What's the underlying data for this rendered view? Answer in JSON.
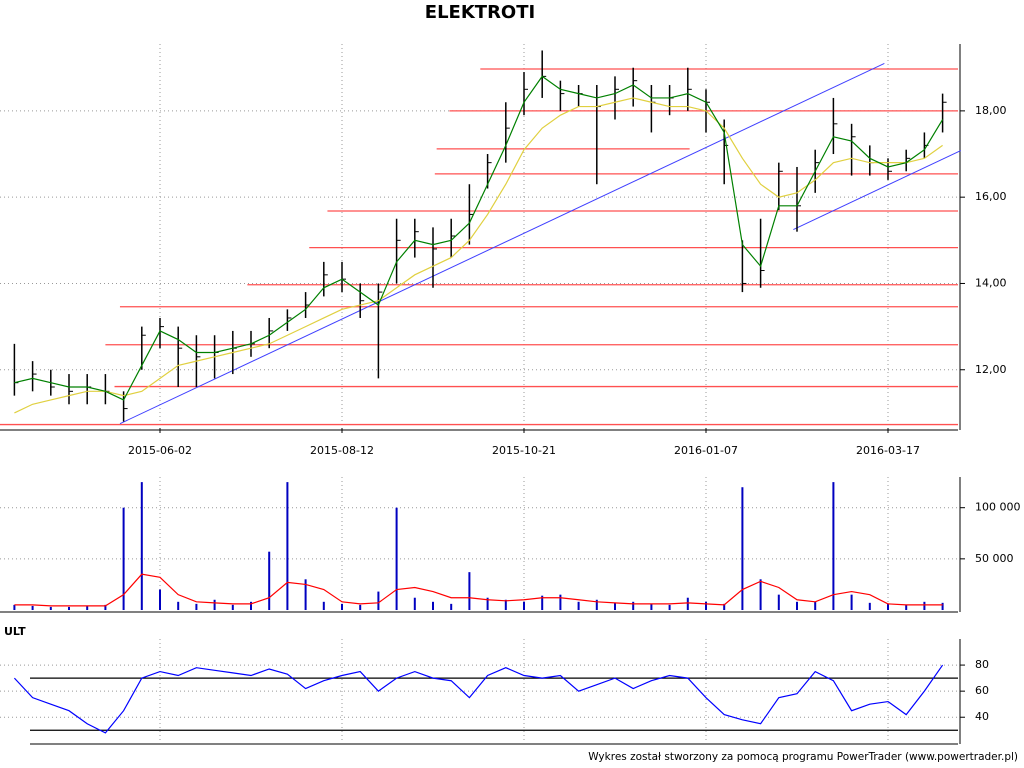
{
  "chart_data": [
    {
      "type": "ohlc",
      "title": "ELEKTROTI",
      "categories": [
        null,
        null,
        null,
        null,
        null,
        null,
        null,
        null,
        "2015-06-02",
        null,
        null,
        null,
        null,
        null,
        null,
        null,
        null,
        null,
        "2015-08-12",
        null,
        null,
        null,
        null,
        null,
        null,
        null,
        null,
        null,
        "2015-10-21",
        null,
        null,
        null,
        null,
        null,
        null,
        null,
        null,
        null,
        "2016-01-07",
        null,
        null,
        null,
        null,
        null,
        null,
        null,
        null,
        null,
        "2016-03-17",
        null,
        null,
        null
      ],
      "high": [
        12.6,
        12.2,
        12.0,
        11.9,
        11.9,
        11.9,
        11.5,
        13.0,
        13.2,
        13.0,
        12.8,
        12.8,
        12.9,
        12.9,
        13.2,
        13.4,
        13.8,
        14.5,
        14.5,
        14.0,
        14.0,
        15.5,
        15.5,
        15.3,
        15.5,
        16.3,
        17.0,
        18.2,
        18.9,
        19.4,
        18.7,
        18.6,
        18.6,
        18.8,
        19.0,
        18.6,
        18.6,
        19.0,
        18.5,
        17.8,
        15.0,
        15.5,
        16.8,
        16.7,
        17.1,
        18.3,
        17.7,
        17.2,
        16.9,
        17.1,
        17.5,
        18.4
      ],
      "low": [
        11.4,
        11.5,
        11.4,
        11.2,
        11.2,
        11.2,
        10.8,
        12.0,
        12.5,
        11.6,
        11.6,
        11.8,
        11.9,
        12.3,
        12.5,
        12.9,
        13.2,
        13.7,
        13.8,
        13.2,
        11.8,
        14.0,
        14.6,
        13.9,
        14.6,
        14.9,
        16.2,
        16.8,
        17.9,
        18.3,
        18.0,
        18.1,
        16.3,
        17.8,
        18.1,
        17.5,
        17.9,
        18.0,
        17.5,
        16.3,
        13.8,
        13.9,
        15.7,
        15.2,
        16.1,
        17.0,
        16.5,
        16.5,
        16.4,
        16.6,
        16.9,
        17.5
      ],
      "close": [
        11.7,
        11.9,
        11.6,
        11.5,
        11.6,
        11.5,
        11.1,
        12.8,
        13.0,
        12.5,
        12.3,
        12.4,
        12.5,
        12.6,
        12.9,
        13.2,
        13.5,
        14.2,
        14.1,
        13.6,
        13.8,
        15.0,
        15.2,
        14.8,
        15.1,
        15.6,
        16.8,
        17.6,
        18.5,
        18.8,
        18.4,
        18.4,
        18.1,
        18.5,
        18.7,
        18.2,
        18.3,
        18.5,
        18.2,
        17.2,
        14.0,
        14.3,
        16.6,
        15.8,
        16.8,
        17.7,
        17.4,
        16.8,
        16.6,
        16.9,
        17.2,
        18.2
      ],
      "color": "#000000",
      "series": [
        {
          "color": "#e0d040",
          "values": [
            11.0,
            11.2,
            11.3,
            11.4,
            11.5,
            11.5,
            11.4,
            11.5,
            11.8,
            12.1,
            12.2,
            12.3,
            12.4,
            12.5,
            12.6,
            12.8,
            13.0,
            13.2,
            13.4,
            13.5,
            13.6,
            13.9,
            14.2,
            14.4,
            14.6,
            15.0,
            15.6,
            16.3,
            17.1,
            17.6,
            17.9,
            18.1,
            18.1,
            18.2,
            18.3,
            18.2,
            18.1,
            18.1,
            18.0,
            17.6,
            16.9,
            16.3,
            16.0,
            16.1,
            16.4,
            16.8,
            16.9,
            16.8,
            16.8,
            16.8,
            16.9,
            17.2
          ]
        },
        {
          "color": "#008000",
          "values": [
            11.7,
            11.8,
            11.7,
            11.6,
            11.6,
            11.5,
            11.3,
            12.1,
            12.9,
            12.7,
            12.4,
            12.4,
            12.5,
            12.6,
            12.8,
            13.1,
            13.4,
            13.9,
            14.1,
            13.8,
            13.5,
            14.5,
            15.0,
            14.9,
            15.0,
            15.4,
            16.3,
            17.2,
            18.2,
            18.8,
            18.5,
            18.4,
            18.3,
            18.4,
            18.6,
            18.3,
            18.3,
            18.4,
            18.2,
            17.5,
            14.9,
            14.4,
            15.8,
            15.8,
            16.6,
            17.4,
            17.3,
            16.9,
            16.7,
            16.8,
            17.1,
            17.8
          ]
        }
      ],
      "levels": {
        "color": "#ff5050",
        "items": [
          {
            "value": 18.97,
            "from": 25.6
          },
          {
            "value": 18.0,
            "from": 23.9
          },
          {
            "value": 17.12,
            "from": 23.2,
            "to": 37.1
          },
          {
            "value": 16.54,
            "from": 23.1
          },
          {
            "value": 15.68,
            "from": 17.2
          },
          {
            "value": 14.83,
            "from": 16.2
          },
          {
            "value": 13.97,
            "from": 12.8
          },
          {
            "value": 13.46,
            "from": 5.8
          },
          {
            "value": 12.58,
            "from": 5.0
          },
          {
            "value": 11.61,
            "from": 5.5
          },
          {
            "value": 10.73,
            "from": -0.8
          }
        ]
      },
      "trendlines": {
        "color": "#4040ff",
        "items": [
          {
            "x": [
              5.8,
              47.8
            ],
            "y": [
              10.75,
              19.1
            ]
          },
          {
            "x": [
              42.8,
              52.0
            ],
            "y": [
              15.25,
              17.08
            ]
          }
        ]
      },
      "ylim": [
        10.65,
        19.55
      ],
      "yticks": [
        {
          "value": 12,
          "label": "12,00"
        },
        {
          "value": 14,
          "label": "14,00"
        },
        {
          "value": 16,
          "label": "16,00"
        },
        {
          "value": 18,
          "label": "18,00"
        }
      ],
      "grid": true
    },
    {
      "type": "bar",
      "values": [
        5000,
        4000,
        3000,
        3000,
        4000,
        5000,
        100000,
        125000,
        20000,
        8000,
        6000,
        10000,
        5000,
        8000,
        57000,
        125000,
        30000,
        8000,
        6000,
        5000,
        18000,
        100000,
        12000,
        8000,
        6000,
        37000,
        12000,
        10000,
        8000,
        14000,
        15000,
        8000,
        10000,
        7000,
        8000,
        6000,
        5000,
        12000,
        8000,
        6000,
        120000,
        30000,
        15000,
        8000,
        8000,
        125000,
        15000,
        7000,
        6000,
        5000,
        8000,
        7000
      ],
      "color": "#0000c0",
      "series": [
        {
          "color": "#ff0000",
          "values": [
            5000,
            5000,
            4000,
            4000,
            4000,
            4000,
            15000,
            35000,
            32000,
            15000,
            8000,
            7000,
            6000,
            6000,
            12000,
            27000,
            25000,
            20000,
            8000,
            6000,
            7000,
            20000,
            22000,
            18000,
            12000,
            12000,
            10000,
            9000,
            10000,
            12000,
            12000,
            10000,
            8000,
            7000,
            6000,
            6000,
            6000,
            7000,
            6000,
            5000,
            20000,
            28000,
            22000,
            10000,
            8000,
            15000,
            18000,
            15000,
            6000,
            5000,
            5000,
            5000
          ]
        }
      ],
      "ylim": [
        0,
        130000
      ],
      "yticks": [
        {
          "value": 50000,
          "label": "50 000"
        },
        {
          "value": 100000,
          "label": "100 000"
        }
      ],
      "grid": true
    },
    {
      "type": "line",
      "title": "ULT",
      "values": [
        70,
        55,
        50,
        45,
        35,
        28,
        45,
        70,
        75,
        72,
        78,
        76,
        74,
        72,
        77,
        73,
        62,
        68,
        72,
        75,
        60,
        70,
        75,
        70,
        68,
        55,
        72,
        78,
        72,
        70,
        72,
        60,
        65,
        70,
        62,
        68,
        72,
        70,
        55,
        42,
        38,
        35,
        55,
        58,
        75,
        68,
        45,
        50,
        52,
        42,
        60,
        80
      ],
      "color": "#0000ff",
      "levels": {
        "color": "#000000",
        "items": [
          {
            "value": 70
          },
          {
            "value": 30
          }
        ]
      },
      "ylim": [
        21,
        100
      ],
      "yticks": [
        40,
        60,
        80
      ],
      "grid": true
    }
  ],
  "footer": "Wykres został stworzony za pomocą programu PowerTrader (www.powertrader.pl)"
}
